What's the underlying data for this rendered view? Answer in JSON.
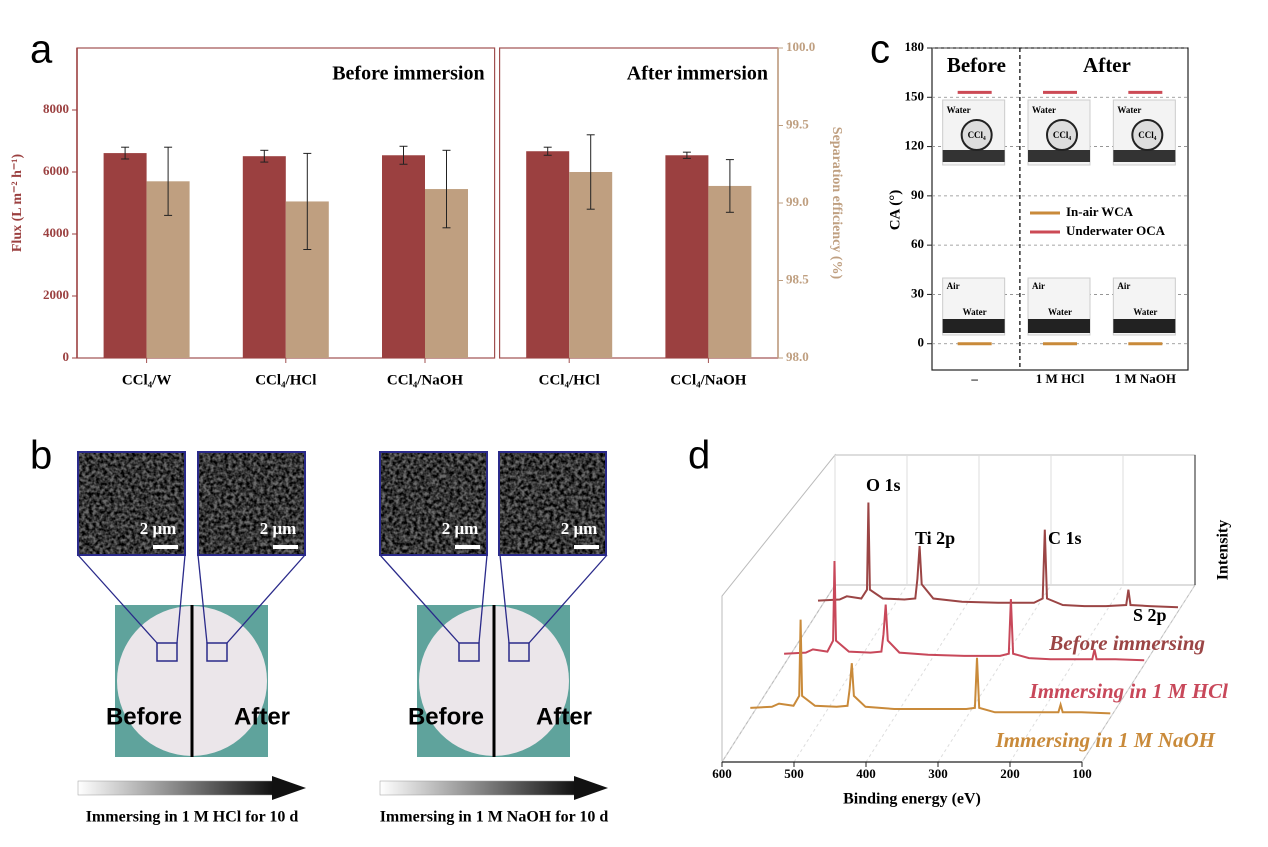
{
  "panels": {
    "a": "a",
    "b": "b",
    "c": "c",
    "d": "d"
  },
  "panel_b": {
    "scale_bars": [
      "2 μm",
      "2 μm",
      "2 μm",
      "2 μm"
    ],
    "photos": [
      {
        "left": "Before",
        "right": "After"
      },
      {
        "left": "Before",
        "right": "After"
      }
    ],
    "captions": [
      "Immersing in 1 M HCl for 10 d",
      "Immersing in 1 M NaOH for 10 d"
    ]
  },
  "chart_data": [
    {
      "type": "bar",
      "ylabel": "Flux (L m⁻² h⁻¹)",
      "y2label": "Separation efficiency (%)",
      "ylim": [
        0,
        10000
      ],
      "yticks": [
        0,
        2000,
        4000,
        6000,
        8000
      ],
      "y2lim": [
        98,
        100
      ],
      "y2ticks": [
        {
          "value": 98,
          "label": "98.0"
        },
        {
          "value": 98.5,
          "label": "98.5"
        },
        {
          "value": 99,
          "label": "99.0"
        },
        {
          "value": 99.5,
          "label": "99.5"
        },
        {
          "value": 100,
          "label": "100.0"
        }
      ],
      "panels": [
        {
          "title": "Before immersion",
          "categories": [
            "CCl₄/W",
            "CCl₄/HCl",
            "CCl₄/NaOH"
          ],
          "series": [
            {
              "color": "#9b4040",
              "values": [
                6610,
                6510,
                6540
              ],
              "errors": [
                190,
                190,
                290
              ]
            },
            {
              "color": "#bf9f80",
              "axis": "y2",
              "values": [
                99.14,
                99.01,
                99.09
              ],
              "errors": [
                0.22,
                0.31,
                0.25
              ]
            }
          ]
        },
        {
          "title": "After immersion",
          "categories": [
            "CCl₄/HCl",
            "CCl₄/NaOH"
          ],
          "series": [
            {
              "color": "#9b4040",
              "values": [
                6670,
                6540
              ],
              "errors": [
                130,
                100
              ]
            },
            {
              "color": "#bf9f80",
              "axis": "y2",
              "values": [
                99.2,
                99.11
              ],
              "errors": [
                0.24,
                0.17
              ]
            }
          ]
        }
      ]
    },
    {
      "type": "scatter",
      "ylabel": "CA (°)",
      "categories": [
        "–",
        "1 M HCl",
        "1 M NaOH"
      ],
      "ylim": [
        -16,
        180
      ],
      "yticks": [
        0,
        30,
        60,
        90,
        120,
        150,
        180
      ],
      "grid": true,
      "annotations": [
        "Before",
        "After"
      ],
      "inset_labels": {
        "oca": [
          "Water",
          "CCl₄"
        ],
        "wca": [
          "Air",
          "Water"
        ]
      },
      "series": [
        {
          "name": "In-air WCA",
          "color": "#c98a3a",
          "values": [
            0,
            0,
            0
          ]
        },
        {
          "name": "Underwater OCA",
          "color": "#cc4a55",
          "values": [
            153,
            153,
            153
          ]
        }
      ]
    },
    {
      "type": "line3d",
      "xlabel": "Binding energy (eV)",
      "ylabel": "Intensity",
      "xlim": [
        600,
        100
      ],
      "xticks": [
        600,
        500,
        400,
        300,
        200,
        100
      ],
      "ylim": [
        0,
        110
      ],
      "annotations": [
        "O 1s",
        "Ti 2p",
        "C 1s",
        "S 2p"
      ],
      "x": [
        600,
        570,
        560,
        540,
        532,
        530,
        528,
        510,
        480,
        465,
        462,
        459,
        456,
        440,
        400,
        350,
        300,
        288,
        285,
        282,
        260,
        230,
        200,
        172,
        169,
        166,
        140,
        100
      ],
      "series": [
        {
          "name": "Before immersing",
          "color": "#9b4545",
          "values": [
            10,
            11,
            14,
            12,
            20,
            100,
            20,
            12,
            11,
            12,
            30,
            60,
            25,
            12,
            9,
            8,
            8,
            12,
            75,
            12,
            6,
            5,
            5,
            6,
            20,
            6,
            5,
            4
          ]
        },
        {
          "name": "Immersing in 1 M HCl",
          "color": "#c8485a",
          "values": [
            10,
            11,
            14,
            12,
            22,
            95,
            22,
            12,
            11,
            12,
            28,
            55,
            22,
            11,
            9,
            8,
            8,
            10,
            60,
            10,
            6,
            5,
            5,
            5,
            14,
            5,
            5,
            4
          ]
        },
        {
          "name": "Immersing in 1 M NaOH",
          "color": "#c98a3a",
          "values": [
            9,
            10,
            13,
            11,
            20,
            90,
            20,
            11,
            10,
            11,
            26,
            50,
            20,
            10,
            8,
            8,
            8,
            9,
            55,
            9,
            5,
            5,
            5,
            5,
            12,
            5,
            5,
            4
          ]
        }
      ]
    }
  ]
}
